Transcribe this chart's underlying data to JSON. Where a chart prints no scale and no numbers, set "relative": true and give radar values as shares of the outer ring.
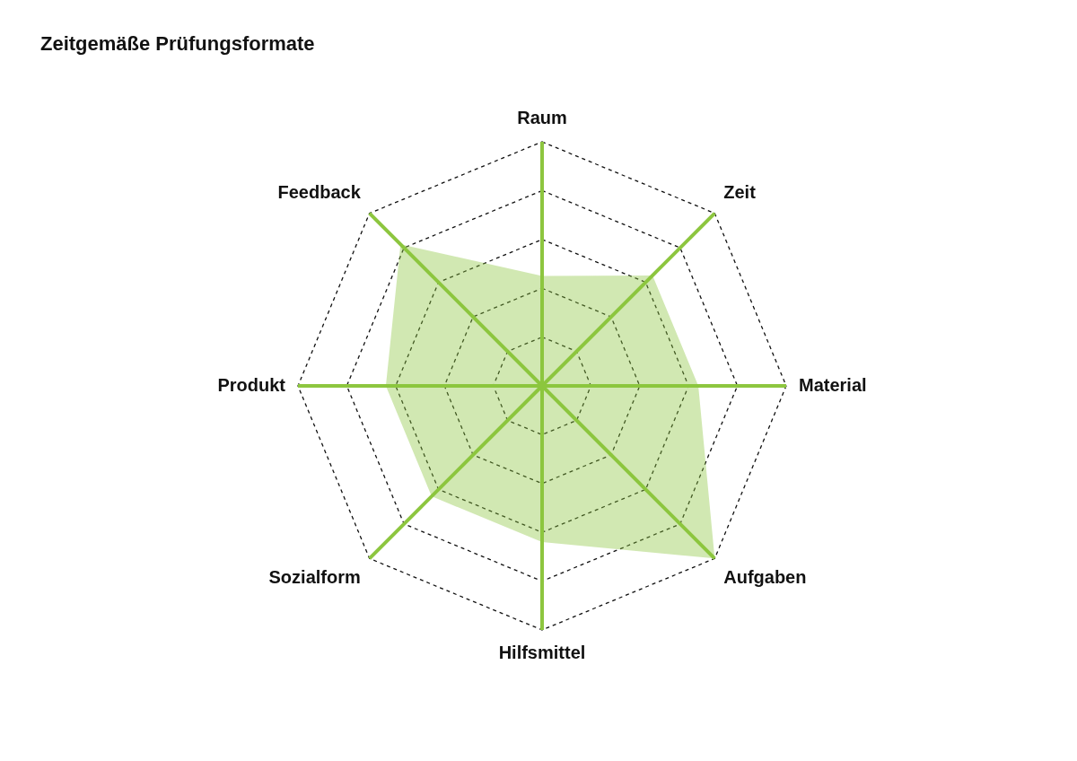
{
  "chart_data": {
    "type": "radar",
    "title": "Zeitgemäße Prüfungsformate",
    "categories": [
      "Raum",
      "Zeit",
      "Material",
      "Aufgaben",
      "Hilfsmittel",
      "Sozialform",
      "Produkt",
      "Feedback"
    ],
    "series": [
      {
        "color": "#8dc63f",
        "values": [
          0.45,
          0.64,
          0.64,
          1,
          0.64,
          0.64,
          0.64,
          0.82
        ]
      }
    ],
    "relative": true,
    "grid": true
  }
}
